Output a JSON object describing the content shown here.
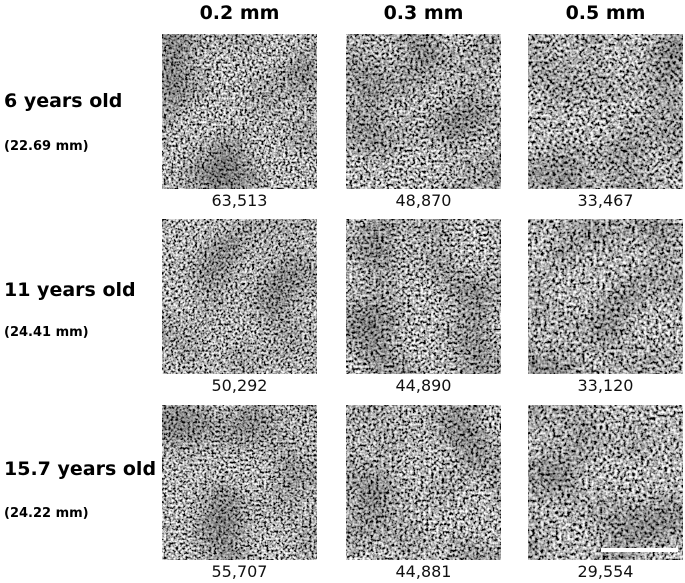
{
  "columns": [
    "0.2 mm",
    "0.3 mm",
    "0.5 mm"
  ],
  "rows": [
    {
      "label": "6 years old",
      "sublabel": "(22.69 mm)",
      "values": [
        "63,513",
        "48,870",
        "33,467"
      ]
    },
    {
      "label": "11 years old",
      "sublabel": "(24.41 mm)",
      "values": [
        "50,292",
        "44,890",
        "33,120"
      ]
    },
    {
      "label": "15.7 years old",
      "sublabel": "(24.22 mm)",
      "values": [
        "55,707",
        "44,881",
        "29,554"
      ]
    }
  ]
}
